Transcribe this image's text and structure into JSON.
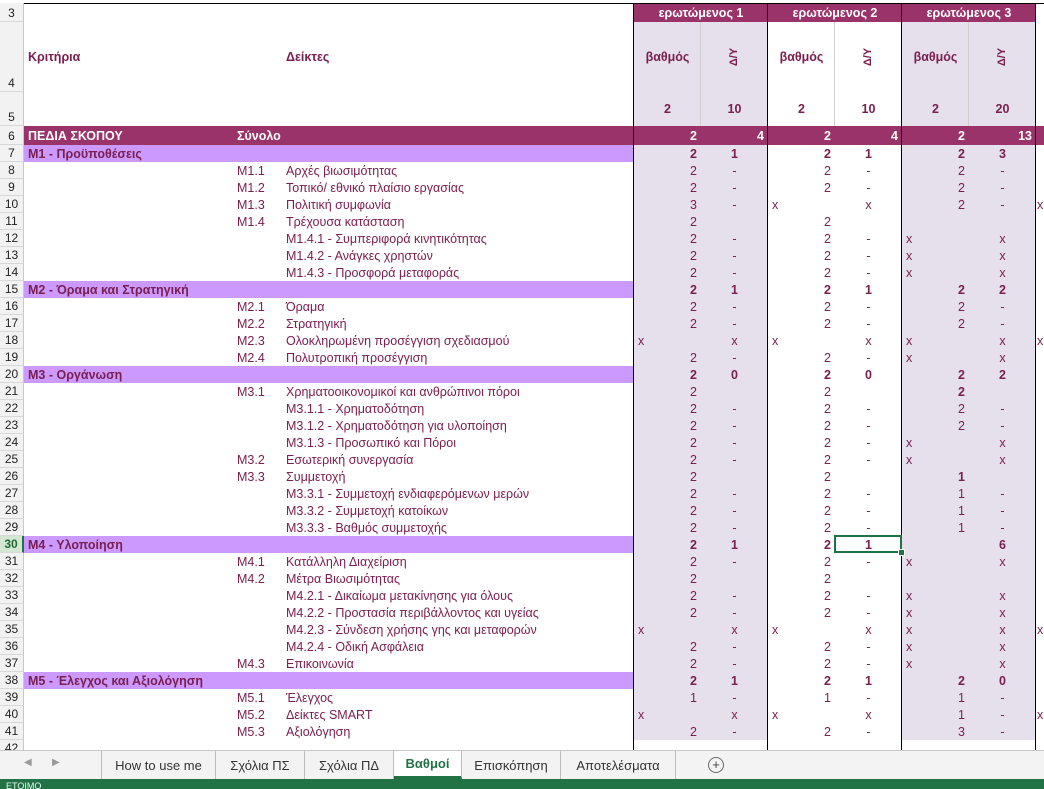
{
  "header": {
    "respondent_1": "ερωτώμενος 1",
    "respondent_2": "ερωτώμενος 2",
    "respondent_3": "ερωτώμενος 3",
    "col_criteria": "Κριτήρια",
    "col_indicators": "Δείκτες",
    "col_score": "βαθμός",
    "col_na": "Δ/Υ",
    "weights": [
      "2",
      "10",
      "2",
      "10",
      "2",
      "20"
    ]
  },
  "row_numbers": [
    "3",
    "4",
    "5",
    "6",
    "7",
    "8",
    "9",
    "10",
    "11",
    "12",
    "13",
    "14",
    "15",
    "16",
    "17",
    "18",
    "19",
    "20",
    "21",
    "22",
    "23",
    "24",
    "25",
    "26",
    "27",
    "28",
    "29",
    "30",
    "31",
    "32",
    "33",
    "34",
    "35",
    "36",
    "37",
    "38",
    "39",
    "40",
    "41",
    "42"
  ],
  "active_row": "30",
  "pedia_row": {
    "label": "ΠΕΔΙΑ ΣΚΟΠΟΥ",
    "sum_label": "Σύνολο",
    "values": [
      "2",
      "4",
      "2",
      "4",
      "2",
      "13"
    ]
  },
  "rows": [
    {
      "n": "7",
      "type": "section",
      "label": "Μ1 - Προϋποθέσεις",
      "v": [
        "2",
        "1",
        "2",
        "1",
        "2",
        "3"
      ]
    },
    {
      "n": "8",
      "type": "ind",
      "code": "Μ1.1",
      "label": "Αρχές βιωσιμότητας",
      "v": [
        "2",
        "-",
        "2",
        "-",
        "2",
        "-"
      ]
    },
    {
      "n": "9",
      "type": "ind",
      "code": "Μ1.2",
      "label": "Τοπικό/ εθνικό πλαίσιο εργασίας",
      "v": [
        "2",
        "-",
        "2",
        "-",
        "2",
        "-"
      ]
    },
    {
      "n": "10",
      "type": "ind",
      "code": "Μ1.3",
      "label": "Πολιτική συμφωνία",
      "v": [
        "3",
        "-",
        "x",
        "x",
        "2",
        "-"
      ],
      "extra": "x"
    },
    {
      "n": "11",
      "type": "ind",
      "code": "Μ1.4",
      "label": "Τρέχουσα κατάσταση",
      "v": [
        "2",
        "",
        "2",
        "",
        "",
        ""
      ]
    },
    {
      "n": "12",
      "type": "sub",
      "label": "Μ1.4.1 - Συμπεριφορά κινητικότητας",
      "v": [
        "2",
        "-",
        "2",
        "-",
        "x",
        "x"
      ]
    },
    {
      "n": "13",
      "type": "sub",
      "label": "Μ1.4.2 - Ανάγκες χρηστών",
      "v": [
        "2",
        "-",
        "2",
        "-",
        "x",
        "x"
      ]
    },
    {
      "n": "14",
      "type": "sub",
      "label": "Μ1.4.3 - Προσφορά μεταφοράς",
      "v": [
        "2",
        "-",
        "2",
        "-",
        "x",
        "x"
      ]
    },
    {
      "n": "15",
      "type": "section",
      "label": "Μ2 - Όραμα και Στρατηγική",
      "v": [
        "2",
        "1",
        "2",
        "1",
        "2",
        "2"
      ]
    },
    {
      "n": "16",
      "type": "ind",
      "code": "Μ2.1",
      "label": "Όραμα",
      "v": [
        "2",
        "-",
        "2",
        "-",
        "2",
        "-"
      ]
    },
    {
      "n": "17",
      "type": "ind",
      "code": "Μ2.2",
      "label": "Στρατηγική",
      "v": [
        "2",
        "-",
        "2",
        "-",
        "2",
        "-"
      ]
    },
    {
      "n": "18",
      "type": "ind",
      "code": "Μ2.3",
      "label": "Ολοκληρωμένη προσέγγιση σχεδιασμού",
      "v": [
        "x",
        "x",
        "x",
        "x",
        "x",
        "x"
      ],
      "extra": "x"
    },
    {
      "n": "19",
      "type": "ind",
      "code": "Μ2.4",
      "label": "Πολυτροπική προσέγγιση",
      "v": [
        "2",
        "-",
        "2",
        "-",
        "x",
        "x"
      ]
    },
    {
      "n": "20",
      "type": "section",
      "label": "Μ3 - Οργάνωση",
      "v": [
        "2",
        "0",
        "2",
        "0",
        "2",
        "2"
      ]
    },
    {
      "n": "21",
      "type": "ind",
      "code": "Μ3.1",
      "label": "Χρηματοοικονομικοί και ανθρώπινοι πόροι",
      "v": [
        "2",
        "",
        "2",
        "",
        "2",
        ""
      ]
    },
    {
      "n": "22",
      "type": "sub",
      "label": "Μ3.1.1 - Χρηματοδότηση",
      "v": [
        "2",
        "-",
        "2",
        "-",
        "2",
        "-"
      ]
    },
    {
      "n": "23",
      "type": "sub",
      "label": "Μ3.1.2 - Χρηματοδότηση για υλοποίηση",
      "v": [
        "2",
        "-",
        "2",
        "-",
        "2",
        "-"
      ]
    },
    {
      "n": "24",
      "type": "sub",
      "label": "Μ3.1.3 - Προσωπικό και Πόροι",
      "v": [
        "2",
        "-",
        "2",
        "-",
        "x",
        "x"
      ]
    },
    {
      "n": "25",
      "type": "ind",
      "code": "Μ3.2",
      "label": "Εσωτερική συνεργασία",
      "v": [
        "2",
        "-",
        "2",
        "-",
        "x",
        "x"
      ]
    },
    {
      "n": "26",
      "type": "ind",
      "code": "Μ3.3",
      "label": "Συμμετοχή",
      "v": [
        "2",
        "",
        "2",
        "",
        "1",
        ""
      ]
    },
    {
      "n": "27",
      "type": "sub",
      "label": "Μ3.3.1 - Συμμετοχή ενδιαφερόμενων μερών",
      "v": [
        "2",
        "-",
        "2",
        "-",
        "1",
        "-"
      ]
    },
    {
      "n": "28",
      "type": "sub",
      "label": "Μ3.3.2 - Συμμετοχή κατοίκων",
      "v": [
        "2",
        "-",
        "2",
        "-",
        "1",
        "-"
      ]
    },
    {
      "n": "29",
      "type": "sub",
      "label": "Μ3.3.3 - Βαθμός συμμετοχής",
      "v": [
        "2",
        "-",
        "2",
        "-",
        "1",
        "-"
      ]
    },
    {
      "n": "30",
      "type": "section",
      "label": "Μ4 - Υλοποίηση",
      "v": [
        "2",
        "1",
        "2",
        "1",
        "",
        "6"
      ]
    },
    {
      "n": "31",
      "type": "ind",
      "code": "Μ4.1",
      "label": "Κατάλληλη Διαχείριση",
      "v": [
        "2",
        "-",
        "2",
        "-",
        "x",
        "x"
      ]
    },
    {
      "n": "32",
      "type": "ind",
      "code": "Μ4.2",
      "label": "Μέτρα Βιωσιμότητας",
      "v": [
        "2",
        "",
        "2",
        "",
        "",
        ""
      ]
    },
    {
      "n": "33",
      "type": "sub",
      "label": "Μ4.2.1 - Δικαίωμα μετακίνησης για όλους",
      "v": [
        "2",
        "-",
        "2",
        "-",
        "x",
        "x"
      ]
    },
    {
      "n": "34",
      "type": "sub",
      "label": "Μ4.2.2 - Προστασία περιβάλλοντος και υγείας",
      "v": [
        "2",
        "-",
        "2",
        "-",
        "x",
        "x"
      ]
    },
    {
      "n": "35",
      "type": "sub",
      "label": "Μ4.2.3 - Σύνδεση χρήσης γης και μεταφορών",
      "v": [
        "x",
        "x",
        "x",
        "x",
        "x",
        "x"
      ],
      "extra": "x"
    },
    {
      "n": "36",
      "type": "sub",
      "label": "Μ4.2.4 - Οδική Ασφάλεια",
      "v": [
        "2",
        "-",
        "2",
        "-",
        "x",
        "x"
      ]
    },
    {
      "n": "37",
      "type": "ind",
      "code": "Μ4.3",
      "label": "Επικοινωνία",
      "v": [
        "2",
        "-",
        "2",
        "-",
        "x",
        "x"
      ]
    },
    {
      "n": "38",
      "type": "section",
      "label": "Μ5 - Έλεγχος και Αξιολόγηση",
      "v": [
        "2",
        "1",
        "2",
        "1",
        "2",
        "0"
      ]
    },
    {
      "n": "39",
      "type": "ind",
      "code": "Μ5.1",
      "label": "Έλεγχος",
      "v": [
        "1",
        "-",
        "1",
        "-",
        "1",
        "-"
      ]
    },
    {
      "n": "40",
      "type": "ind",
      "code": "Μ5.2",
      "label": "Δείκτες SMART",
      "v": [
        "x",
        "x",
        "x",
        "x",
        "1",
        "-"
      ],
      "extra": "x"
    },
    {
      "n": "41",
      "type": "ind",
      "code": "Μ5.3",
      "label": "Αξιολόγηση",
      "v": [
        "2",
        "-",
        "2",
        "-",
        "3",
        "-"
      ]
    }
  ],
  "tabs": [
    "How to use me",
    "Σχόλια ΠΣ",
    "Σχόλια ΠΔ",
    "Βαθμοί",
    "Επισκόπηση",
    "Αποτελέσματα"
  ],
  "active_tab": "Βαθμοί",
  "add_sheet": "+",
  "status": "ΕΤΟΙΜΟ"
}
